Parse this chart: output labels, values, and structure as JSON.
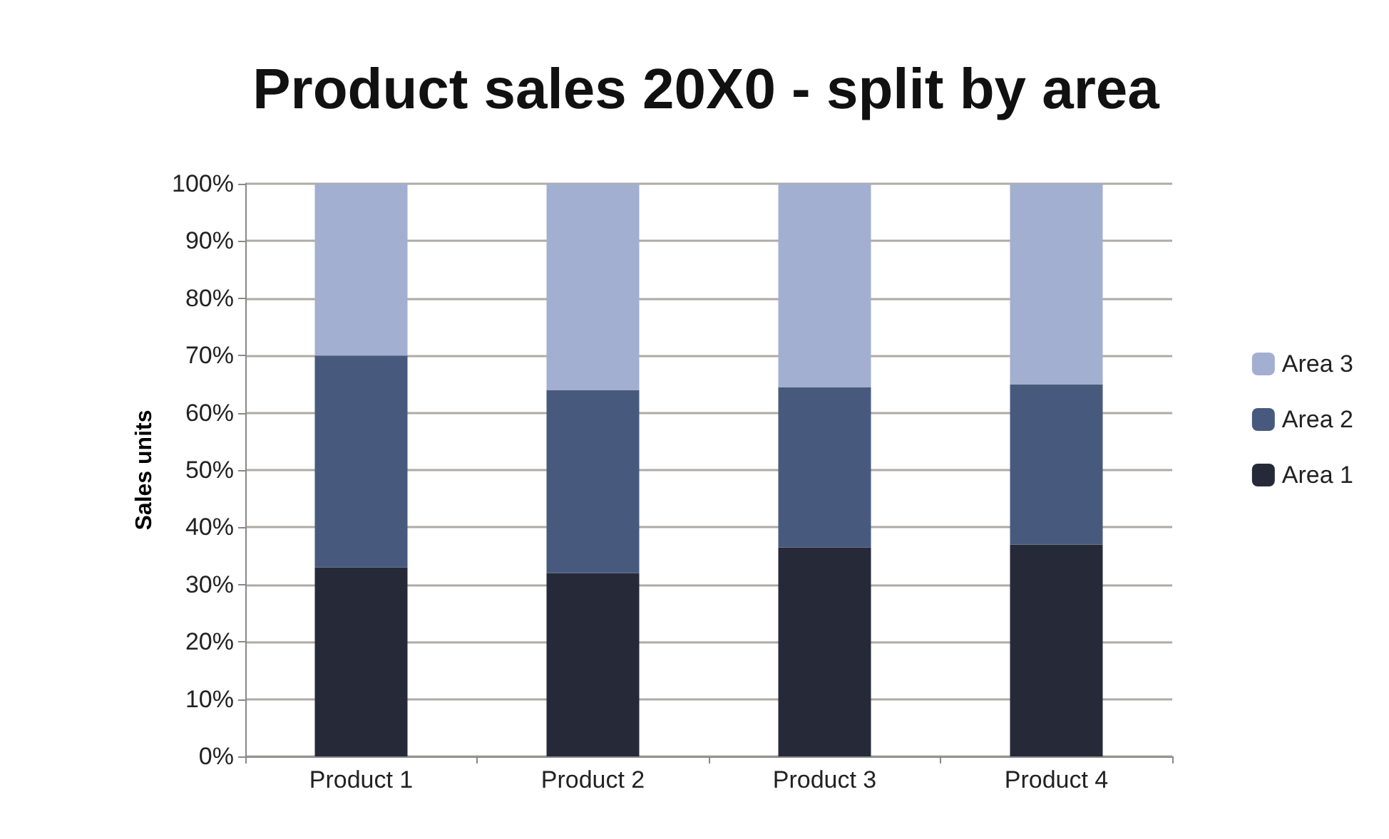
{
  "chart_data": {
    "type": "bar",
    "title": "Product sales 20X0 - split by area",
    "ylabel": "Sales units",
    "categories": [
      "Product 1",
      "Product 2",
      "Product 3",
      "Product 4"
    ],
    "series": [
      {
        "name": "Area 1",
        "color": "#262a38",
        "values": [
          33,
          32,
          36.5,
          37
        ]
      },
      {
        "name": "Area 2",
        "color": "#475a7e",
        "values": [
          37,
          32,
          28,
          28
        ]
      },
      {
        "name": "Area 3",
        "color": "#a2afd0",
        "values": [
          30,
          36,
          35.5,
          35
        ]
      }
    ],
    "stacked": true,
    "ylim": [
      0,
      100
    ],
    "yticks": [
      {
        "value": 0,
        "label": "0%"
      },
      {
        "value": 10,
        "label": "10%"
      },
      {
        "value": 20,
        "label": "20%"
      },
      {
        "value": 30,
        "label": "30%"
      },
      {
        "value": 40,
        "label": "40%"
      },
      {
        "value": 50,
        "label": "50%"
      },
      {
        "value": 60,
        "label": "60%"
      },
      {
        "value": 70,
        "label": "70%"
      },
      {
        "value": 80,
        "label": "80%"
      },
      {
        "value": 90,
        "label": "90%"
      },
      {
        "value": 100,
        "label": "100%"
      }
    ],
    "grid": "y",
    "legend": "right"
  }
}
